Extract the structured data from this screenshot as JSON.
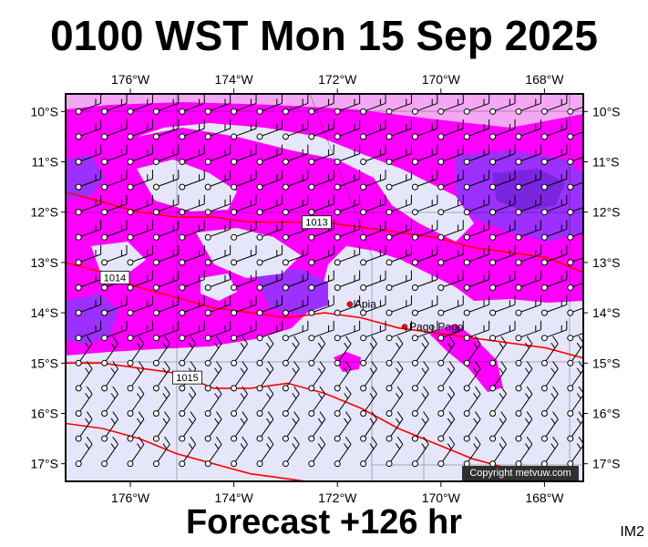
{
  "title": "0100 WST Mon 15 Sep 2025",
  "footer": "Forecast +126 hr",
  "corner_label": "IM2",
  "copyright": "Copyright metvuw.com",
  "map": {
    "lon_labels": [
      "176°W",
      "174°W",
      "172°W",
      "170°W",
      "168°W"
    ],
    "lat_labels": [
      "10°S",
      "11°S",
      "12°S",
      "13°S",
      "14°S",
      "15°S",
      "16°S",
      "17°S"
    ],
    "places": [
      {
        "name": "Apia",
        "lon": -171.76,
        "lat": -13.83
      },
      {
        "name": "Pago Pago",
        "lon": -170.7,
        "lat": -14.28
      }
    ],
    "isobars": [
      {
        "label": "1013",
        "lat_values": [
          -11.6,
          -11.8,
          -12.0,
          -12.1,
          -12.1,
          -12.2,
          -12.2,
          -12.2,
          -12.3,
          -12.4,
          -12.5,
          -12.7,
          -12.8,
          -12.9,
          -13.2
        ]
      },
      {
        "label": "1014",
        "lat_values": [
          -13.0,
          -13.2,
          -13.5,
          -13.7,
          -13.9,
          -14.0,
          -14.1,
          -14.0,
          -14.1,
          -14.3,
          -14.4,
          -14.5,
          -14.6,
          -14.7,
          -14.9
        ]
      },
      {
        "label": "1015",
        "lat_values": [
          -15.0,
          -15.0,
          -15.1,
          -15.2,
          -15.5,
          -15.5,
          -15.4,
          -15.6,
          -15.9,
          -16.3,
          -16.6,
          -16.9,
          -17.1,
          -17.3,
          -17.4
        ]
      },
      {
        "label": "",
        "lat_values": [
          -16.2,
          -16.3,
          -16.5,
          -16.8,
          -17.0,
          -17.2,
          -17.3,
          -17.4,
          -17.6,
          -17.8,
          -18.0,
          -18.2,
          -18.4,
          -18.6,
          -18.8
        ]
      }
    ],
    "colors": {
      "background": "#e6e6fa",
      "precip_light": "#f4a8f4",
      "precip_mid": "#ff00ff",
      "precip_heavy": "#9b30ff",
      "precip_deep": "#7b24e0",
      "isobar": "#ff0000",
      "barb": "#000000",
      "grid": "#000000"
    }
  }
}
